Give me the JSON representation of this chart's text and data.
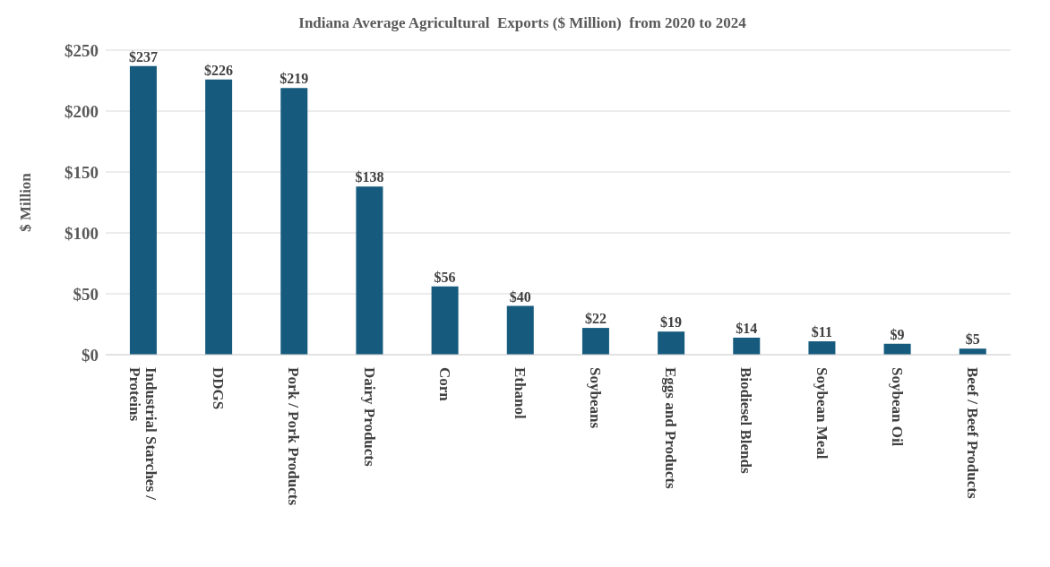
{
  "chart_data": {
    "type": "bar",
    "title": "Indiana Average Agricultural  Exports ($ Million)  from 2020 to 2024",
    "ylabel": "$ Million",
    "categories": [
      "Industrial Starches / Proteins",
      "DDGS",
      "Pork / Pork Products",
      "Dairy Products",
      "Corn",
      "Ethanol",
      "Soybeans",
      "Eggs and Products",
      "Biodiesel Blends",
      "Soybean Meal",
      "Soybean Oil",
      "Beef / Beef Products"
    ],
    "values": [
      237,
      226,
      219,
      138,
      56,
      40,
      22,
      19,
      14,
      11,
      9,
      5
    ],
    "value_labels": [
      "$237",
      "$226",
      "$219",
      "$138",
      "$56",
      "$40",
      "$22",
      "$19",
      "$14",
      "$11",
      "$9",
      "$5"
    ],
    "color": "#165b7e",
    "ylim": [
      0,
      250
    ],
    "yticks": [
      {
        "value": 0,
        "label": "$0"
      },
      {
        "value": 50,
        "label": "$50"
      },
      {
        "value": 100,
        "label": "$100"
      },
      {
        "value": 150,
        "label": "$150"
      },
      {
        "value": 200,
        "label": "$200"
      },
      {
        "value": 250,
        "label": "$250"
      }
    ],
    "grid": "y"
  }
}
